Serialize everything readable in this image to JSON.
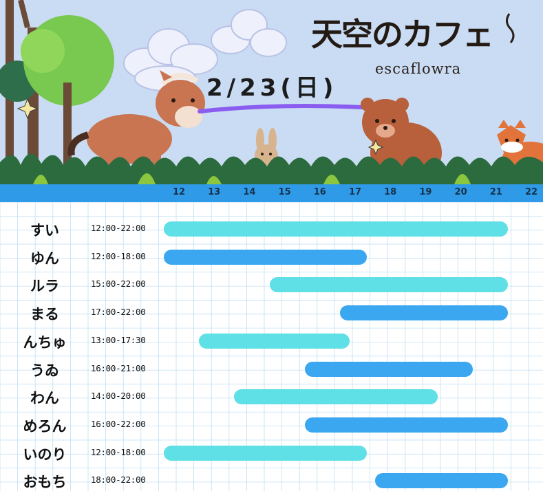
{
  "header": {
    "title_jp": "天空のカフェ",
    "title_en": "escaflowra",
    "date": "2/23(日)"
  },
  "schedule": {
    "hours": [
      "12",
      "13",
      "14",
      "15",
      "16",
      "17",
      "18",
      "19",
      "20",
      "21",
      "22"
    ],
    "bar_colors": [
      "#5ee0e6",
      "#3aa7f0"
    ],
    "rows": [
      {
        "name": "すい",
        "time": "12:00-22:00",
        "start": 12,
        "end": 22
      },
      {
        "name": "ゆん",
        "time": "12:00-18:00",
        "start": 12,
        "end": 18
      },
      {
        "name": "ルラ",
        "time": "15:00-22:00",
        "start": 15,
        "end": 22
      },
      {
        "name": "まる",
        "time": "17:00-22:00",
        "start": 17,
        "end": 22
      },
      {
        "name": "んちゅ",
        "time": "13:00-17:30",
        "start": 13,
        "end": 17.5
      },
      {
        "name": "うゐ",
        "time": "16:00-21:00",
        "start": 16,
        "end": 21
      },
      {
        "name": "わん",
        "time": "14:00-20:00",
        "start": 14,
        "end": 20
      },
      {
        "name": "めろん",
        "time": "16:00-22:00",
        "start": 16,
        "end": 22
      },
      {
        "name": "いのり",
        "time": "12:00-18:00",
        "start": 12,
        "end": 18
      },
      {
        "name": "おもち",
        "time": "18:00-22:00",
        "start": 18,
        "end": 22
      }
    ]
  }
}
